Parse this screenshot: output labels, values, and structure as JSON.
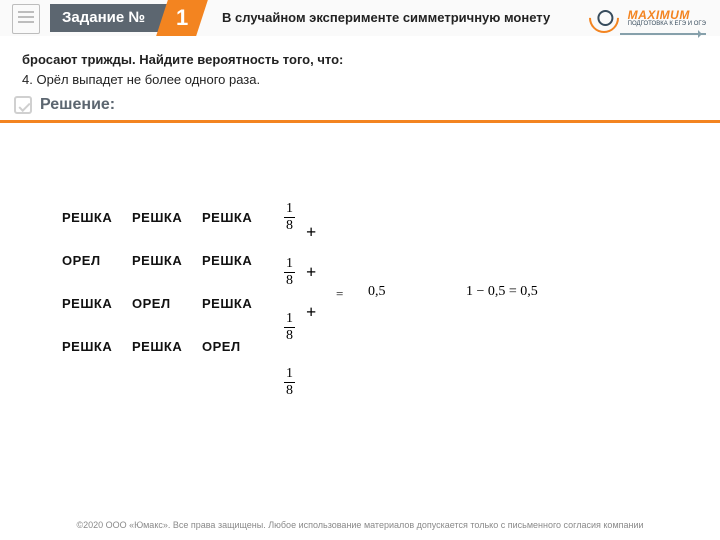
{
  "header": {
    "task_label": "Задание №",
    "task_number": "1",
    "intro_line1": "В случайном эксперименте симметричную монету",
    "intro_line2": "бросают трижды. Найдите вероятность того, что:",
    "intro_line3": "4. Орёл выпадет не более одного раза.",
    "logo_brand": "MAXIMUM",
    "logo_sub": "ПОДГОТОВКА К ЕГЭ И ОГЭ"
  },
  "solution_label": "Решение:",
  "outcomes": {
    "rows": [
      [
        "РЕШКА",
        "РЕШКА",
        "РЕШКА"
      ],
      [
        "ОРЕЛ",
        "РЕШКА",
        "РЕШКА"
      ],
      [
        "РЕШКА",
        "ОРЕЛ",
        "РЕШКА"
      ],
      [
        "РЕШКА",
        "РЕШКА",
        "ОРЕЛ"
      ]
    ]
  },
  "fractions": [
    {
      "num": "1",
      "den": "8"
    },
    {
      "num": "1",
      "den": "8"
    },
    {
      "num": "1",
      "den": "8"
    },
    {
      "num": "1",
      "den": "8"
    }
  ],
  "operators": {
    "plus": "+",
    "equals": "="
  },
  "results": {
    "sum": "0,5",
    "complement": "1 − 0,5 = 0,5"
  },
  "footer": "©2020 ООО «Юмакс». Все права защищены. Любое использование материалов допускается только с письменного согласия компании",
  "colors": {
    "orange": "#f38420",
    "grey": "#5c6670",
    "logo_dark": "#374b5c"
  }
}
